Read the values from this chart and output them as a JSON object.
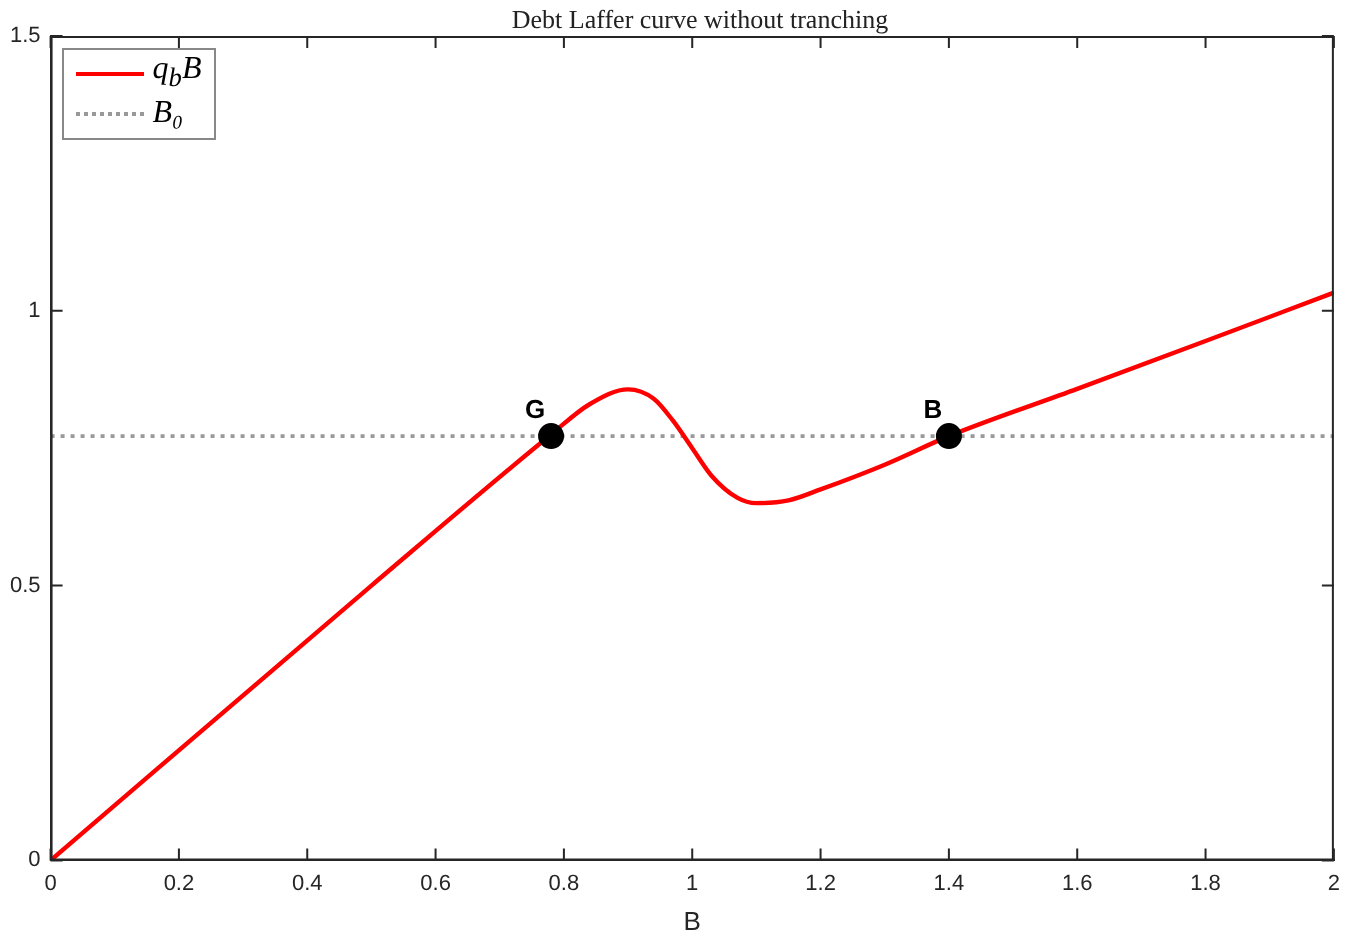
{
  "chart_data": {
    "type": "line",
    "title": "Debt Laffer curve without tranching",
    "xlabel": "B",
    "series": [
      {
        "name": "q$_{b}$B",
        "color": "#ff0000",
        "x": [
          0,
          0.5,
          0.78,
          0.84,
          0.9,
          0.94,
          0.97,
          1.0,
          1.03,
          1.07,
          1.1,
          1.15,
          1.2,
          1.3,
          1.4,
          1.6,
          1.8,
          2
        ],
        "marker": "none",
        "values": [
          0,
          0.5,
          0.775,
          0.83,
          0.857,
          0.84,
          0.8,
          0.75,
          0.7,
          0.66,
          0.65,
          0.655,
          0.675,
          0.72,
          0.772,
          0.858,
          0.945,
          1.033
        ]
      },
      {
        "type": "scatter",
        "color": "#000000",
        "marker": "circle",
        "x": [
          0.78,
          1.4
        ],
        "values": [
          0.772,
          0.772
        ]
      }
    ],
    "ref_lines": [
      {
        "axis": "y",
        "value": 0.772,
        "label": "B₀",
        "color": "#999999",
        "line_style": "dotted"
      }
    ],
    "annotations": [
      {
        "text": "G",
        "x": 0.78,
        "y": 0.772
      },
      {
        "text": "B",
        "x": 1.4,
        "y": 0.772
      }
    ],
    "xlim": [
      0,
      2
    ],
    "xticks": [
      0,
      0.2,
      0.4,
      0.6,
      0.8,
      1,
      1.2,
      1.4,
      1.6,
      1.8,
      2
    ],
    "ylim": [
      0,
      1.5
    ],
    "yticks": [
      0,
      0.5,
      1,
      1.5
    ],
    "grid": false,
    "legend": "top left",
    "line_style": "solid"
  }
}
